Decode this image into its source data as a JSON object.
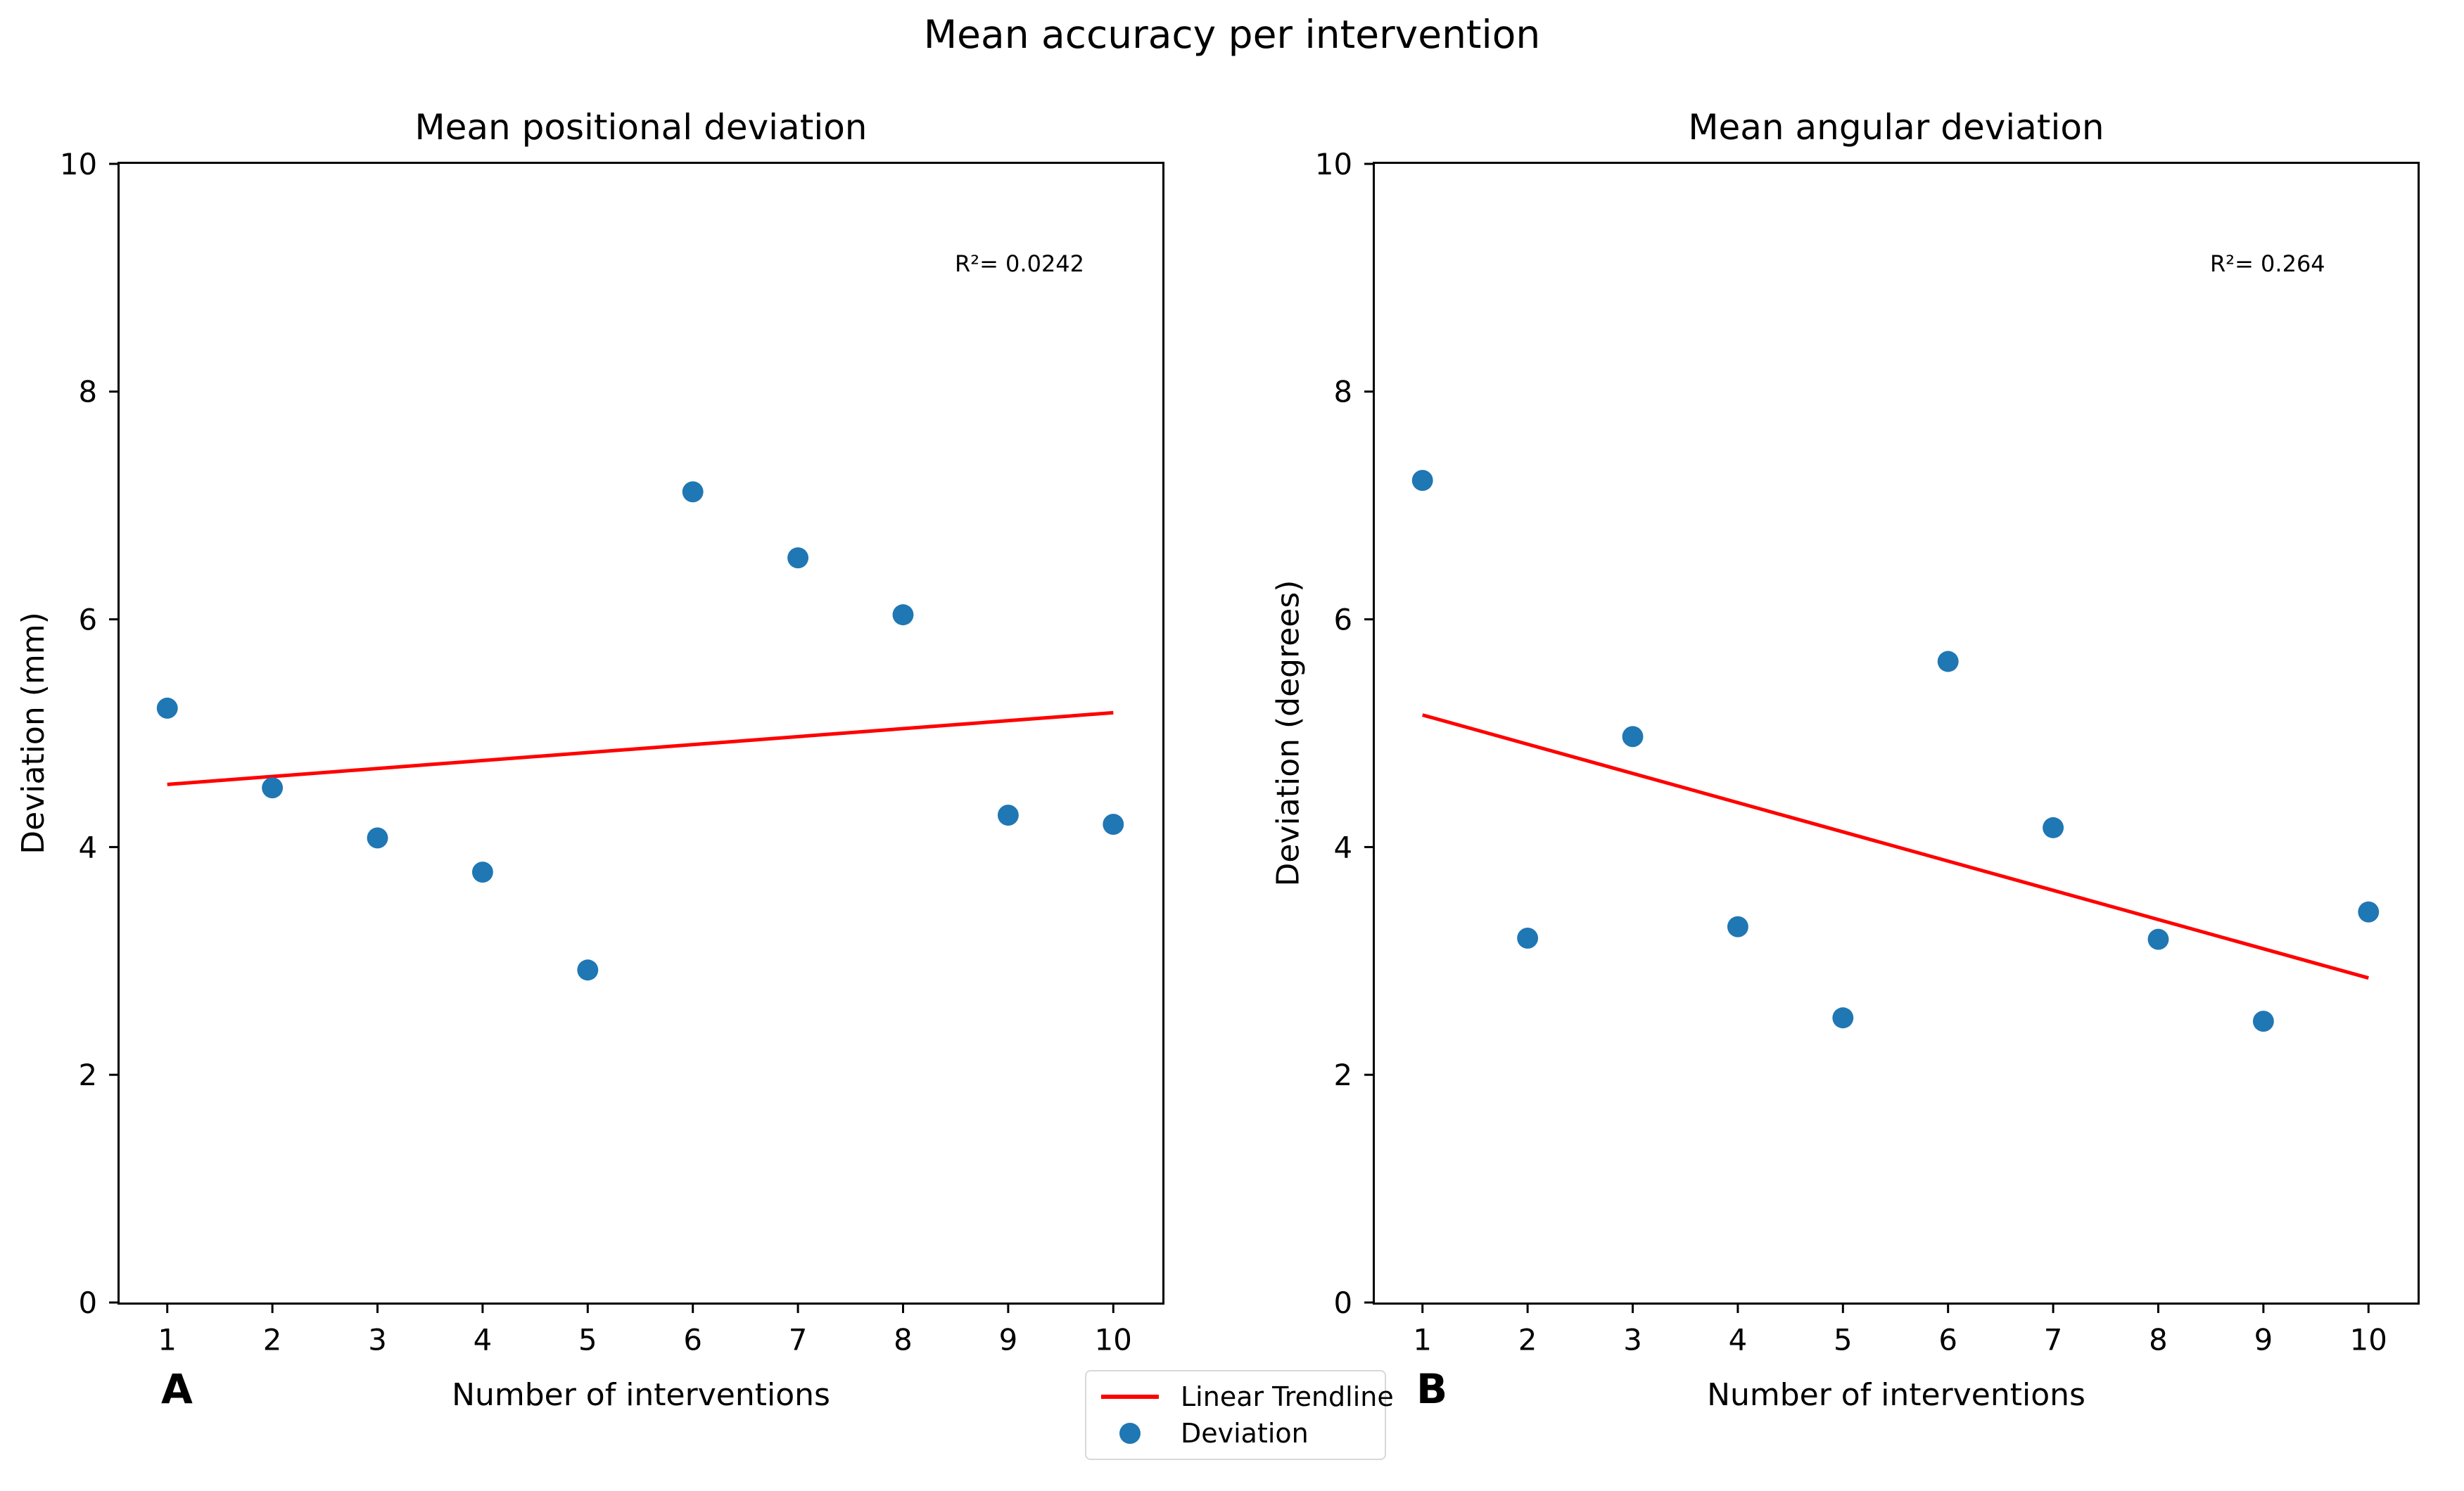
{
  "figure": {
    "suptitle": "Mean accuracy per intervention",
    "background": "#ffffff",
    "spine_color": "#000000"
  },
  "legend": {
    "items": [
      {
        "label": "Linear Trendline",
        "marker": "line",
        "color": "#ff0000"
      },
      {
        "label": "Deviation",
        "marker": "dot",
        "color": "#1f77b4"
      }
    ]
  },
  "chart_data": [
    {
      "type": "scatter",
      "panel_label": "A",
      "title": "Mean positional deviation",
      "xlabel": "Number of interventions",
      "ylabel": "Deviation (mm)",
      "annotation": "R²= 0.0242",
      "r_squared": 0.0242,
      "x": [
        1,
        2,
        3,
        4,
        5,
        6,
        7,
        8,
        9,
        10
      ],
      "y": [
        5.22,
        4.52,
        4.08,
        3.78,
        2.92,
        7.12,
        6.54,
        6.04,
        4.28,
        4.2
      ],
      "xticks": [
        1,
        2,
        3,
        4,
        5,
        6,
        7,
        8,
        9,
        10
      ],
      "yticks": [
        0,
        2,
        4,
        6,
        8,
        10
      ],
      "ylim": [
        0,
        10
      ],
      "grid": false,
      "trendline": {
        "x": [
          1,
          10
        ],
        "y": [
          4.55,
          5.18
        ],
        "color": "#ff0000"
      },
      "marker_color": "#1f77b4"
    },
    {
      "type": "scatter",
      "panel_label": "B",
      "title": "Mean angular deviation",
      "xlabel": "Number of interventions",
      "ylabel": "Deviation (degrees)",
      "annotation": "R²= 0.264",
      "r_squared": 0.264,
      "x": [
        1,
        2,
        3,
        4,
        5,
        6,
        7,
        8,
        9,
        10
      ],
      "y": [
        7.22,
        3.2,
        4.97,
        3.3,
        2.5,
        5.63,
        4.17,
        3.19,
        2.47,
        3.43
      ],
      "xticks": [
        1,
        2,
        3,
        4,
        5,
        6,
        7,
        8,
        9,
        10
      ],
      "yticks": [
        0,
        2,
        4,
        6,
        8,
        10
      ],
      "ylim": [
        0,
        10
      ],
      "grid": false,
      "trendline": {
        "x": [
          1,
          10
        ],
        "y": [
          5.16,
          2.85
        ],
        "color": "#ff0000"
      },
      "marker_color": "#1f77b4"
    }
  ]
}
